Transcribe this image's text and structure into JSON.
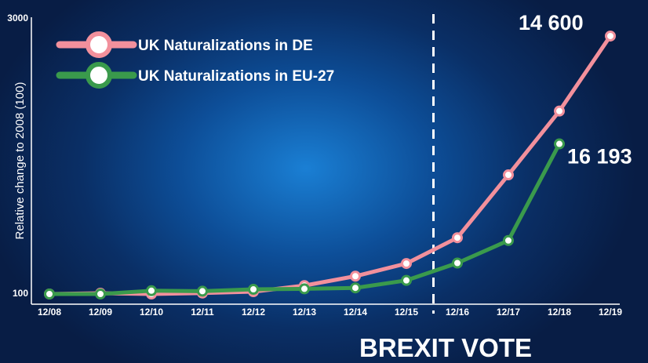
{
  "chart_data": {
    "type": "line",
    "title": "",
    "xlabel": "",
    "ylabel": "Relative change to 2008 (100)",
    "categories": [
      "12/08",
      "12/09",
      "12/10",
      "12/11",
      "12/12",
      "12/13",
      "12/14",
      "12/15",
      "12/16",
      "12/17",
      "12/18",
      "12/19"
    ],
    "y_tick_labels": [
      "3000",
      "100"
    ],
    "ylim": [
      100,
      3000
    ],
    "grid": false,
    "legend_position": "top-left",
    "series": [
      {
        "name": "UK Naturalizations in DE",
        "color": "#f2909c",
        "marker_fill": "#ffffff",
        "values": [
          100,
          108,
          100,
          110,
          125,
          190,
          290,
          425,
          700,
          1370,
          2050,
          2850
        ]
      },
      {
        "name": "UK Naturalizations in EU-27",
        "color": "#3a9a4c",
        "marker_fill": "#ffffff",
        "values": [
          100,
          100,
          135,
          130,
          150,
          155,
          165,
          245,
          430,
          670,
          1700,
          null
        ]
      }
    ],
    "annotations": [
      {
        "text": "14 600",
        "series": 0,
        "category": "12/19"
      },
      {
        "text": "16 193",
        "series": 1,
        "category": "12/18"
      }
    ],
    "event_marker": {
      "category_between": [
        "12/15",
        "12/16"
      ],
      "label": "BREXIT VOTE"
    }
  }
}
